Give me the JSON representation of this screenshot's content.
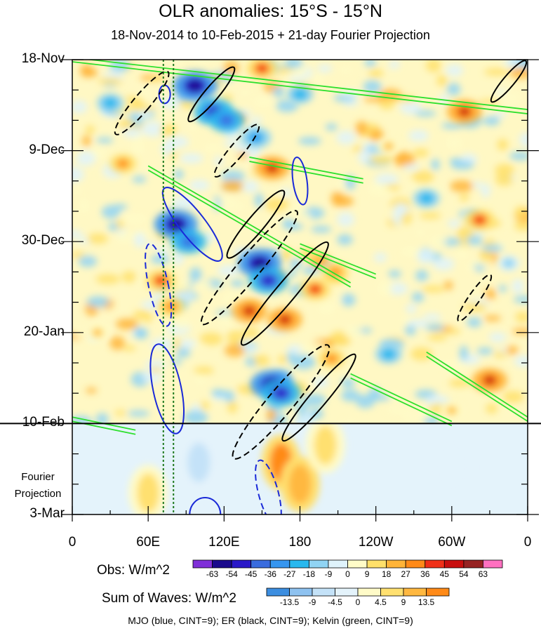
{
  "chart_data": {
    "type": "heatmap",
    "title": "OLR anomalies: 15°S - 15°N",
    "subtitle": "18-Nov-2014 to 10-Feb-2015 + 21-day Fourier Projection",
    "y_axis": {
      "ticks": [
        "18-Nov",
        "9-Dec",
        "30-Dec",
        "20-Jan",
        "10-Feb",
        "3-Mar"
      ],
      "range": [
        "2014-11-18",
        "2015-03-03"
      ],
      "observation_end": "2015-02-10"
    },
    "x_axis": {
      "ticks": [
        "0",
        "60E",
        "120E",
        "180",
        "120W",
        "60W",
        "0"
      ],
      "range_deg_east": [
        0,
        360
      ]
    },
    "projection_label": "Fourier Projection",
    "obs_colorbar": {
      "label": "Obs: W/m^2",
      "levels": [
        "-63",
        "-54",
        "-45",
        "-36",
        "-27",
        "-18",
        "-9",
        "0",
        "9",
        "18",
        "27",
        "36",
        "45",
        "54",
        "63"
      ],
      "colors": [
        "#7f2fd8",
        "#1a0a8c",
        "#2a18c8",
        "#3a6cde",
        "#3696f0",
        "#28b8ee",
        "#90d4f4",
        "#dff3fb",
        "#fffcc8",
        "#ffe06a",
        "#ffb438",
        "#ff8a18",
        "#f03018",
        "#c80e0e",
        "#962222",
        "#ff70c0"
      ]
    },
    "waves_colorbar": {
      "label": "Sum of Waves: W/m^2",
      "levels": [
        "-13.5",
        "-9",
        "-4.5",
        "0",
        "4.5",
        "9",
        "13.5"
      ],
      "colors": [
        "#3c8ee0",
        "#8ec2f0",
        "#c4e2f8",
        "#e4f3fb",
        "#fffbc8",
        "#ffe070",
        "#ffb840",
        "#ff8a18"
      ]
    },
    "contours_legend": "MJO (blue, CINT=9); ER (black, CINT=9); Kelvin (green, CINT=9)",
    "series": [
      {
        "name": "MJO",
        "color": "#1a2ad8",
        "cint": 9
      },
      {
        "name": "ER",
        "color": "#000000",
        "cint": 9
      },
      {
        "name": "Kelvin",
        "color": "#2ee02e",
        "cint": 9
      }
    ],
    "reference_lines_deg_east": [
      72,
      80
    ],
    "blobs": [
      {
        "lon": 97,
        "date": "2014-11-24",
        "value": -63
      },
      {
        "lon": 112,
        "date": "2014-11-30",
        "value": -54
      },
      {
        "lon": 122,
        "date": "2014-12-02",
        "value": -45
      },
      {
        "lon": 145,
        "date": "2014-12-06",
        "value": -36
      },
      {
        "lon": 82,
        "date": "2014-12-26",
        "value": -63
      },
      {
        "lon": 92,
        "date": "2014-12-30",
        "value": -45
      },
      {
        "lon": 148,
        "date": "2015-01-04",
        "value": -63
      },
      {
        "lon": 155,
        "date": "2015-01-08",
        "value": -54
      },
      {
        "lon": 158,
        "date": "2015-02-01",
        "value": -63
      },
      {
        "lon": 165,
        "date": "2015-02-03",
        "value": -54
      },
      {
        "lon": 140,
        "date": "2015-01-15",
        "value": 45
      },
      {
        "lon": 168,
        "date": "2015-01-17",
        "value": 45
      },
      {
        "lon": 192,
        "date": "2015-01-10",
        "value": 36
      },
      {
        "lon": 150,
        "date": "2014-11-20",
        "value": 36
      },
      {
        "lon": 158,
        "date": "2014-12-13",
        "value": 45
      },
      {
        "lon": 310,
        "date": "2014-11-30",
        "value": 45
      },
      {
        "lon": 322,
        "date": "2014-12-25",
        "value": 36
      },
      {
        "lon": 330,
        "date": "2015-01-31",
        "value": 45
      },
      {
        "lon": 70,
        "date": "2015-01-08",
        "value": 36
      },
      {
        "lon": 78,
        "date": "2015-01-14",
        "value": 27
      },
      {
        "lon": 208,
        "date": "2015-01-06",
        "value": 27
      },
      {
        "lon": 205,
        "date": "2015-01-26",
        "value": 27
      },
      {
        "lon": 40,
        "date": "2014-12-12",
        "value": 27
      },
      {
        "lon": 20,
        "date": "2015-01-20",
        "value": 18
      },
      {
        "lon": 280,
        "date": "2014-12-20",
        "value": -27
      },
      {
        "lon": 250,
        "date": "2015-01-25",
        "value": -27
      },
      {
        "lon": 30,
        "date": "2014-11-28",
        "value": -27
      },
      {
        "lon": 180,
        "date": "2014-11-26",
        "value": -27
      },
      {
        "lon": 250,
        "date": "2014-12-08",
        "value": 18
      },
      {
        "lon": 345,
        "date": "2015-01-04",
        "value": -18
      },
      {
        "lon": 300,
        "date": "2015-02-07",
        "value": 18
      }
    ],
    "projection_blobs": [
      {
        "lon": 165,
        "date": "2015-02-19",
        "value": 13.5
      },
      {
        "lon": 180,
        "date": "2015-02-24",
        "value": 9
      },
      {
        "lon": 100,
        "date": "2015-02-19",
        "value": -9
      },
      {
        "lon": 90,
        "date": "2015-03-01",
        "value": -4.5
      },
      {
        "lon": 60,
        "date": "2015-02-26",
        "value": 4.5
      },
      {
        "lon": 200,
        "date": "2015-02-15",
        "value": 4.5
      },
      {
        "lon": 300,
        "date": "2015-02-20",
        "value": -4.5
      }
    ],
    "contours": [
      {
        "wave": "MJO",
        "sign": "neg",
        "lon": 73,
        "date": "2014-11-26",
        "rx": 8,
        "ry": 13,
        "rot": 0
      },
      {
        "wave": "MJO",
        "sign": "neg",
        "lon": 180,
        "date": "2014-12-16",
        "rx": 10,
        "ry": 34,
        "rot": -8
      },
      {
        "wave": "MJO",
        "sign": "neg",
        "lon": 95,
        "date": "2014-12-26",
        "rx": 18,
        "ry": 65,
        "rot": -38
      },
      {
        "wave": "MJO",
        "sign": "pos",
        "lon": 68,
        "date": "2015-01-09",
        "rx": 14,
        "ry": 60,
        "rot": -12
      },
      {
        "wave": "MJO",
        "sign": "neg",
        "lon": 75,
        "date": "2015-02-02",
        "rx": 20,
        "ry": 65,
        "rot": -12
      },
      {
        "wave": "MJO",
        "sign": "pos",
        "lon": 155,
        "date": "2015-02-26",
        "rx": 14,
        "ry": 48,
        "rot": -15
      },
      {
        "wave": "MJO",
        "sign": "neg",
        "lon": 105,
        "date": "2015-03-03",
        "rx": 22,
        "ry": 24,
        "rot": 0
      },
      {
        "wave": "ER",
        "sign": "pos",
        "lon": 55,
        "date": "2014-11-28",
        "rx": 12,
        "ry": 58,
        "rot": 40
      },
      {
        "wave": "ER",
        "sign": "neg",
        "lon": 110,
        "date": "2014-11-26",
        "rx": 10,
        "ry": 50,
        "rot": 40
      },
      {
        "wave": "ER",
        "sign": "pos",
        "lon": 130,
        "date": "2014-12-09",
        "rx": 10,
        "ry": 48,
        "rot": 40
      },
      {
        "wave": "ER",
        "sign": "neg",
        "lon": 145,
        "date": "2014-12-26",
        "rx": 12,
        "ry": 62,
        "rot": 40
      },
      {
        "wave": "ER",
        "sign": "pos",
        "lon": 140,
        "date": "2015-01-05",
        "rx": 16,
        "ry": 105,
        "rot": 40
      },
      {
        "wave": "ER",
        "sign": "neg",
        "lon": 168,
        "date": "2015-01-11",
        "rx": 14,
        "ry": 95,
        "rot": 40
      },
      {
        "wave": "ER",
        "sign": "pos",
        "lon": 165,
        "date": "2015-02-05",
        "rx": 18,
        "ry": 105,
        "rot": 40
      },
      {
        "wave": "ER",
        "sign": "neg",
        "lon": 195,
        "date": "2015-02-04",
        "rx": 12,
        "ry": 80,
        "rot": 40
      },
      {
        "wave": "ER",
        "sign": "pos",
        "lon": 318,
        "date": "2015-01-12",
        "rx": 8,
        "ry": 40,
        "rot": 35
      },
      {
        "wave": "ER",
        "sign": "neg",
        "lon": 345,
        "date": "2014-11-23",
        "rx": 8,
        "ry": 38,
        "rot": 40
      }
    ],
    "kelvin_bands": [
      {
        "lon_start": 0,
        "date_start": "2014-11-18",
        "lon_end": 360,
        "date_end": "2014-11-30"
      },
      {
        "lon_start": 60,
        "date_start": "2014-12-13",
        "lon_end": 220,
        "date_end": "2015-01-09"
      },
      {
        "lon_start": 140,
        "date_start": "2014-12-11",
        "lon_end": 230,
        "date_end": "2014-12-16"
      },
      {
        "lon_start": 180,
        "date_start": "2014-12-31",
        "lon_end": 240,
        "date_end": "2015-01-07"
      },
      {
        "lon_start": 280,
        "date_start": "2015-01-25",
        "lon_end": 360,
        "date_end": "2015-02-09"
      },
      {
        "lon_start": 220,
        "date_start": "2015-01-30",
        "lon_end": 300,
        "date_end": "2015-02-10"
      },
      {
        "lon_start": 0,
        "date_start": "2015-02-09",
        "lon_end": 50,
        "date_end": "2015-02-12"
      }
    ]
  }
}
